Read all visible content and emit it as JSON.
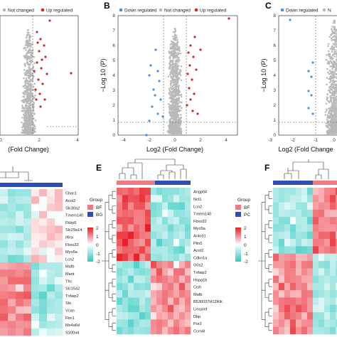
{
  "panels": {
    "A": {
      "legend": [
        "Not changed",
        "Up regulated"
      ],
      "x_ticks": [
        "0",
        "2",
        "4"
      ],
      "x_title": "(Fold Change)"
    },
    "B": {
      "letter": "B",
      "legend": [
        "Down regulated",
        "Not changed",
        "Up regulated"
      ],
      "y_ticks": [
        "0",
        "1",
        "2",
        "3",
        "4",
        "5",
        "6",
        "7",
        "8"
      ],
      "x_ticks": [
        "-4",
        "-2",
        "0",
        "2",
        "4"
      ],
      "y_title": "−Log 10 (P)",
      "x_title": "Log2 (Fold Change)"
    },
    "C": {
      "letter": "C",
      "legend": [
        "Down regulated",
        "N"
      ],
      "y_ticks": [
        "0",
        "1",
        "2",
        "3",
        "4",
        "5",
        "6",
        "7",
        "8"
      ],
      "x_ticks": [
        "-3",
        "-2",
        "-1",
        "0"
      ],
      "y_title": "−Log 10 (P)",
      "x_title": "Log2 (Fold Change"
    },
    "D": {
      "genes": [
        "Chac1",
        "Acot2",
        "Slc30a2",
        "Tmem140",
        "Fkbp5",
        "Slc29a14",
        "Il6ra",
        "Fbxo32",
        "Myo5a",
        "Lcn2",
        "Mafb",
        "Mant",
        "Tfrc",
        "Slc15a2",
        "Tnfaip2",
        "Sln",
        "Vcan",
        "Fbn1",
        "Ms4a6d",
        "S100a4"
      ],
      "legend_title": "Group",
      "groups": [
        "BF",
        "BG"
      ],
      "scale": [
        "2",
        "1",
        "0",
        "-1",
        "-2"
      ]
    },
    "E": {
      "letter": "E",
      "genes": [
        "Angptl4",
        "Nct1",
        "Lcn2",
        "Tmem140",
        "Fbxo32",
        "Myo5a",
        "Ankrd1",
        "Plin5",
        "Acot2",
        "Cdkn1a",
        "G0s2",
        "Tnfaip2",
        "Hspa1b",
        "Cish",
        "Mafb",
        "B530037H12Rik",
        "Lincpint",
        "Dbp",
        "Por2",
        "Ccrn4l"
      ],
      "legend_title": "Group",
      "groups": [
        "BF",
        "PC"
      ],
      "scale": [
        "2",
        "1",
        "0",
        "-1",
        "-2"
      ]
    },
    "F": {
      "letter": "F"
    }
  },
  "colors": {
    "down": "#4a90d9",
    "not_changed": "#b8b8b8",
    "up": "#d62728",
    "hm_high": "#e8202a",
    "hm_mid": "#ffffff",
    "hm_low": "#2ec8c0",
    "group_1": "#f07a82",
    "group_2": "#2d4fb3"
  }
}
